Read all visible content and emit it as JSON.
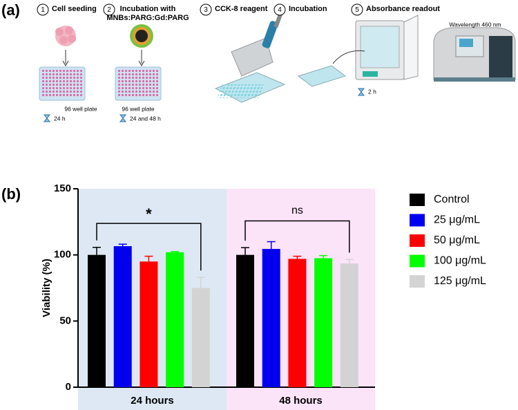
{
  "panel_a": {
    "label": "(a)",
    "steps": [
      {
        "number": "1",
        "title": [
          "Cell seeding"
        ],
        "notes": [
          "96 well plate",
          "24 h"
        ]
      },
      {
        "number": "2",
        "title": [
          "Incubation with",
          "MNBs:PARG:Gd:PARG"
        ],
        "notes": [
          "96 well plate",
          "24 and 48 h"
        ]
      },
      {
        "number": "3",
        "title": [
          "CCK-8 reagent"
        ],
        "notes": []
      },
      {
        "number": "4",
        "title": [
          "Incubation"
        ],
        "notes": [
          "2 h"
        ]
      },
      {
        "number": "5",
        "title": [
          "Absorbance readout"
        ],
        "notes": [
          "Wavelength 460 nm"
        ]
      }
    ]
  },
  "chart_data": {
    "type": "bar",
    "panel_label": "(b)",
    "y_label": "Viability (%)",
    "categories": [
      "24 hours",
      "48 hours"
    ],
    "category_backgrounds": [
      "#dde8f4",
      "#fbe3f8"
    ],
    "significance": [
      "*",
      "ns"
    ],
    "series": [
      {
        "name": "Control",
        "color": "#000000",
        "values": [
          100,
          100
        ],
        "errors": [
          5.7,
          5.5
        ]
      },
      {
        "name": "25 μg/mL",
        "color": "#0000ee",
        "values": [
          106.6,
          104.5
        ],
        "errors": [
          1.5,
          5.5
        ]
      },
      {
        "name": "50 μg/mL",
        "color": "#ff0000",
        "values": [
          95,
          97
        ],
        "errors": [
          4,
          2
        ]
      },
      {
        "name": "100 μg/mL",
        "color": "#00ff00",
        "values": [
          102,
          97.5
        ],
        "errors": [
          0.5,
          2
        ]
      },
      {
        "name": "125 μg/mL",
        "color": "#d3d3d3",
        "values": [
          75,
          93.5
        ],
        "errors": [
          8,
          3
        ]
      }
    ],
    "ylim": [
      0,
      150
    ],
    "yticks": [
      0,
      50,
      100,
      150
    ],
    "grid": false,
    "legend": "right"
  }
}
